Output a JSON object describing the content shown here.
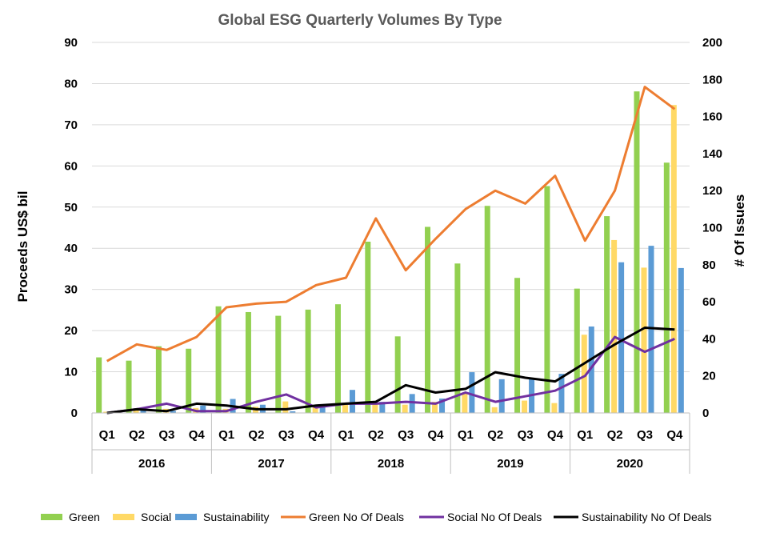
{
  "chart_data": {
    "type": "bar",
    "title": "Global ESG Quarterly Volumes By Type",
    "ylabel": "Proceeds US$ bil",
    "y2label": "# Of Issues",
    "ylim": [
      0,
      90
    ],
    "y2lim": [
      0,
      200
    ],
    "yticks": [
      0,
      10,
      20,
      30,
      40,
      50,
      60,
      70,
      80,
      90
    ],
    "y2ticks": [
      0,
      20,
      40,
      60,
      80,
      100,
      120,
      140,
      160,
      180,
      200
    ],
    "years": [
      "2016",
      "2017",
      "2018",
      "2019",
      "2020"
    ],
    "categories": [
      "Q1",
      "Q2",
      "Q3",
      "Q4",
      "Q1",
      "Q2",
      "Q3",
      "Q4",
      "Q1",
      "Q2",
      "Q3",
      "Q4",
      "Q1",
      "Q2",
      "Q3",
      "Q4",
      "Q1",
      "Q2",
      "Q3",
      "Q4"
    ],
    "series": [
      {
        "name": "Green",
        "kind": "bar",
        "axis": "left",
        "color": "#92D050",
        "values": [
          13.5,
          12.7,
          16.2,
          15.6,
          25.9,
          24.5,
          23.6,
          25.1,
          26.4,
          41.6,
          18.6,
          45.2,
          36.3,
          50.3,
          32.8,
          55.1,
          30.2,
          47.8,
          78.1,
          60.8
        ]
      },
      {
        "name": "Social",
        "kind": "bar",
        "axis": "left",
        "color": "#FFD966",
        "values": [
          0.3,
          0.8,
          1.0,
          1.2,
          1.0,
          1.5,
          2.8,
          1.5,
          2.0,
          2.3,
          2.0,
          2.7,
          5.0,
          1.4,
          3.0,
          2.4,
          19.0,
          42.0,
          35.3,
          74.8
        ]
      },
      {
        "name": "Sustainability",
        "kind": "bar",
        "axis": "left",
        "color": "#5B9BD5",
        "values": [
          0.2,
          0.8,
          0.5,
          1.8,
          3.4,
          2.0,
          0.4,
          1.8,
          5.6,
          2.7,
          4.6,
          3.5,
          9.9,
          8.2,
          8.2,
          9.5,
          21.0,
          36.6,
          40.6,
          35.2
        ]
      },
      {
        "name": "Green No Of Deals",
        "kind": "line",
        "axis": "right",
        "color": "#ED7D31",
        "values": [
          28,
          37,
          34,
          41,
          57,
          59,
          60,
          69,
          73,
          105,
          77,
          94,
          110,
          120,
          113,
          128,
          93,
          120,
          176,
          164
        ]
      },
      {
        "name": "Social No Of Deals",
        "kind": "line",
        "axis": "right",
        "color": "#7030A0",
        "values": [
          0,
          2,
          5,
          1,
          1,
          6,
          10,
          3,
          5,
          5,
          6,
          5,
          11,
          6,
          9,
          12,
          20,
          41,
          33,
          40
        ]
      },
      {
        "name": "Sustainability No Of Deals",
        "kind": "line",
        "axis": "right",
        "color": "#000000",
        "values": [
          0,
          2,
          1,
          5,
          4,
          2,
          2,
          4,
          5,
          6,
          15,
          11,
          13,
          22,
          19,
          17,
          27,
          37,
          46,
          45
        ]
      }
    ],
    "grid": true,
    "legend": "bottom"
  }
}
